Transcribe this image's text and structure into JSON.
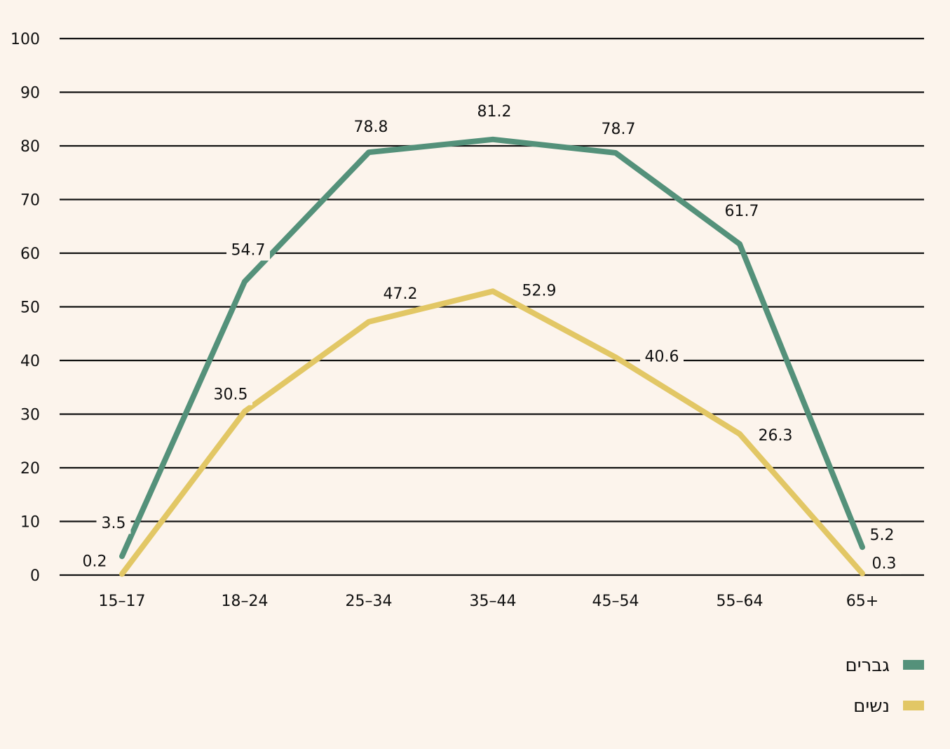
{
  "chart_data": {
    "type": "line",
    "categories": [
      "15–17",
      "18–24",
      "25–34",
      "35–44",
      "45–54",
      "55–64",
      "65+"
    ],
    "ylim": [
      0,
      100
    ],
    "yticks": [
      0,
      10,
      20,
      30,
      40,
      50,
      60,
      70,
      80,
      90,
      100
    ],
    "grid": true,
    "legend_position": "bottom-right",
    "series": [
      {
        "name": "גברים",
        "color": "#54917a",
        "values": [
          3.5,
          54.7,
          78.8,
          81.2,
          78.7,
          61.7,
          5.2
        ]
      },
      {
        "name": "נשים",
        "color": "#e2c765",
        "values": [
          0.2,
          30.5,
          47.2,
          52.9,
          40.6,
          26.3,
          0.3
        ]
      }
    ]
  }
}
